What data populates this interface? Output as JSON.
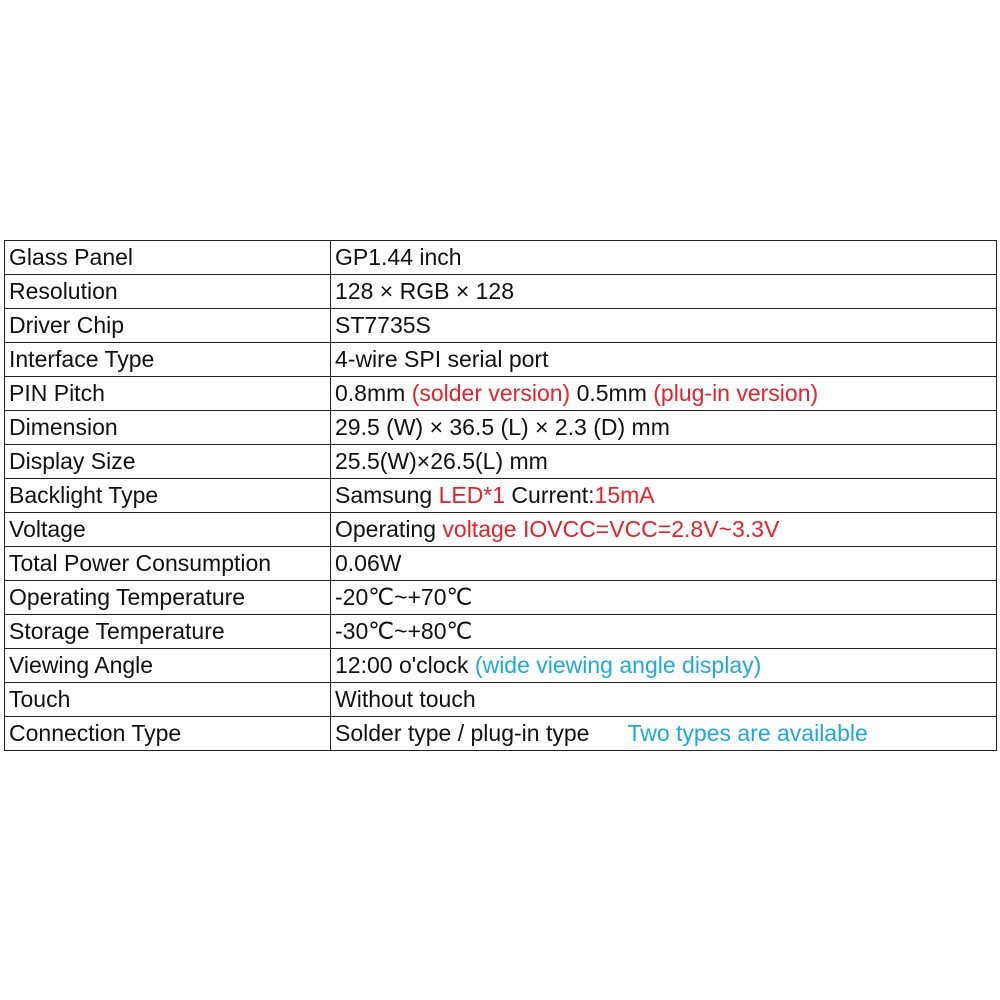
{
  "colors": {
    "text": "#111111",
    "red": "#e8202a",
    "blue": "#1fa8e0",
    "border": "#222222"
  },
  "specs": [
    {
      "label": "Glass Panel",
      "value": [
        {
          "text": "GP1.44 inch",
          "color": "text"
        }
      ]
    },
    {
      "label": "Resolution",
      "value": [
        {
          "text": "128 × RGB × 128",
          "color": "text"
        }
      ]
    },
    {
      "label": "Driver Chip",
      "value": [
        {
          "text": "ST7735S",
          "color": "text"
        }
      ]
    },
    {
      "label": "Interface Type",
      "value": [
        {
          "text": "4-wire SPI serial port",
          "color": "text"
        }
      ]
    },
    {
      "label": "PIN Pitch",
      "value": [
        {
          "text": "0.8mm ",
          "color": "text"
        },
        {
          "text": "(solder version)",
          "color": "red"
        },
        {
          "text": " 0.5mm ",
          "color": "text"
        },
        {
          "text": "(plug-in version)",
          "color": "red"
        }
      ]
    },
    {
      "label": "Dimension",
      "value": [
        {
          "text": "29.5 (W) × 36.5 (L) × 2.3 (D) mm",
          "color": "text"
        }
      ]
    },
    {
      "label": "Display Size",
      "value": [
        {
          "text": "25.5(W)×26.5(L) mm",
          "color": "text"
        }
      ]
    },
    {
      "label": "Backlight Type",
      "value": [
        {
          "text": "Samsung ",
          "color": "text"
        },
        {
          "text": "LED*1",
          "color": "red"
        },
        {
          "text": " Current:",
          "color": "text"
        },
        {
          "text": "15mA",
          "color": "red"
        }
      ]
    },
    {
      "label": "Voltage",
      "value": [
        {
          "text": "Operating ",
          "color": "text"
        },
        {
          "text": "voltage IOVCC=VCC=2.8V~3.3V",
          "color": "red"
        }
      ]
    },
    {
      "label": "Total Power Consumption",
      "value": [
        {
          "text": "0.06W",
          "color": "text"
        }
      ]
    },
    {
      "label": "Operating Temperature",
      "value": [
        {
          "text": "-20℃~+70℃",
          "color": "text"
        }
      ]
    },
    {
      "label": "Storage Temperature",
      "value": [
        {
          "text": "-30℃~+80℃",
          "color": "text"
        }
      ]
    },
    {
      "label": "Viewing Angle",
      "value": [
        {
          "text": "12:00 o'clock ",
          "color": "text"
        },
        {
          "text": "(wide viewing angle display)",
          "color": "blue"
        }
      ]
    },
    {
      "label": "Touch",
      "value": [
        {
          "text": "Without touch",
          "color": "text"
        }
      ]
    },
    {
      "label": "Connection Type",
      "value": [
        {
          "text": "Solder type / plug-in type",
          "color": "text"
        },
        {
          "text": "Two types are available",
          "color": "blue",
          "gap": true
        }
      ]
    }
  ]
}
